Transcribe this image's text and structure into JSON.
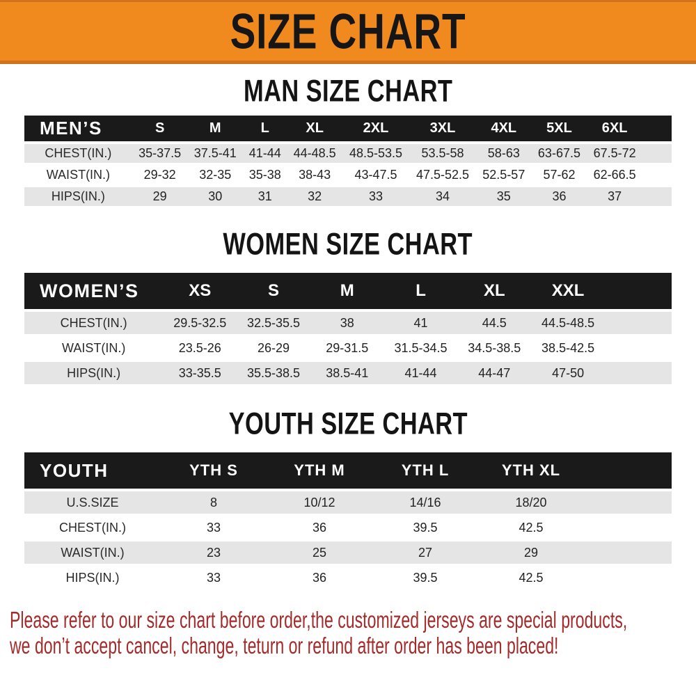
{
  "banner": {
    "title": "SIZE CHART"
  },
  "sections": [
    {
      "title": "MAN SIZE CHART",
      "table": {
        "label": "MEN’S",
        "columns": [
          "S",
          "M",
          "L",
          "XL",
          "2XL",
          "3XL",
          "4XL",
          "5XL",
          "6XL"
        ],
        "rows": [
          {
            "label": "CHEST(IN.)",
            "values": [
              "35-37.5",
              "37.5-41",
              "41-44",
              "44-48.5",
              "48.5-53.5",
              "53.5-58",
              "58-63",
              "63-67.5",
              "67.5-72"
            ]
          },
          {
            "label": "WAIST(IN.)",
            "values": [
              "29-32",
              "32-35",
              "35-38",
              "38-43",
              "43-47.5",
              "47.5-52.5",
              "52.5-57",
              "57-62",
              "62-66.5"
            ]
          },
          {
            "label": "HIPS(IN.)",
            "values": [
              "29",
              "30",
              "31",
              "32",
              "33",
              "34",
              "35",
              "36",
              "37"
            ]
          }
        ]
      }
    },
    {
      "title": "WOMEN SIZE CHART",
      "table": {
        "label": "WOMEN’S",
        "columns": [
          "XS",
          "S",
          "M",
          "L",
          "XL",
          "XXL"
        ],
        "rows": [
          {
            "label": "CHEST(IN.)",
            "values": [
              "29.5-32.5",
              "32.5-35.5",
              "38",
              "41",
              "44.5",
              "44.5-48.5"
            ]
          },
          {
            "label": "WAIST(IN.)",
            "values": [
              "23.5-26",
              "26-29",
              "29-31.5",
              "31.5-34.5",
              "34.5-38.5",
              "38.5-42.5"
            ]
          },
          {
            "label": "HIPS(IN.)",
            "values": [
              "33-35.5",
              "35.5-38.5",
              "38.5-41",
              "41-44",
              "44-47",
              "47-50"
            ]
          }
        ]
      }
    },
    {
      "title": "YOUTH SIZE CHART",
      "table": {
        "label": "YOUTH",
        "columns": [
          "YTH S",
          "YTH M",
          "YTH L",
          "YTH XL"
        ],
        "rows": [
          {
            "label": "U.S.SIZE",
            "values": [
              "8",
              "10/12",
              "14/16",
              "18/20"
            ]
          },
          {
            "label": "CHEST(IN.)",
            "values": [
              "33",
              "36",
              "39.5",
              "42.5"
            ]
          },
          {
            "label": "WAIST(IN.)",
            "values": [
              "23",
              "25",
              "27",
              "29"
            ]
          },
          {
            "label": "HIPS(IN.)",
            "values": [
              "33",
              "36",
              "39.5",
              "42.5"
            ]
          }
        ]
      }
    }
  ],
  "footer": {
    "lines": [
      "Please refer to our size chart before order,the customized jerseys are special products,",
      "we don’t accept cancel, change, teturn or refund after order has been placed!"
    ]
  },
  "colors": {
    "banner_bg": "#F18A1E",
    "banner_edge": "#D0731C",
    "bar_black": "#1A1A1A",
    "row_gray": "#E5E5E5",
    "row_white": "#FFFFFF",
    "ink": "#1F1F1F",
    "footer_red": "#A52A2A"
  }
}
